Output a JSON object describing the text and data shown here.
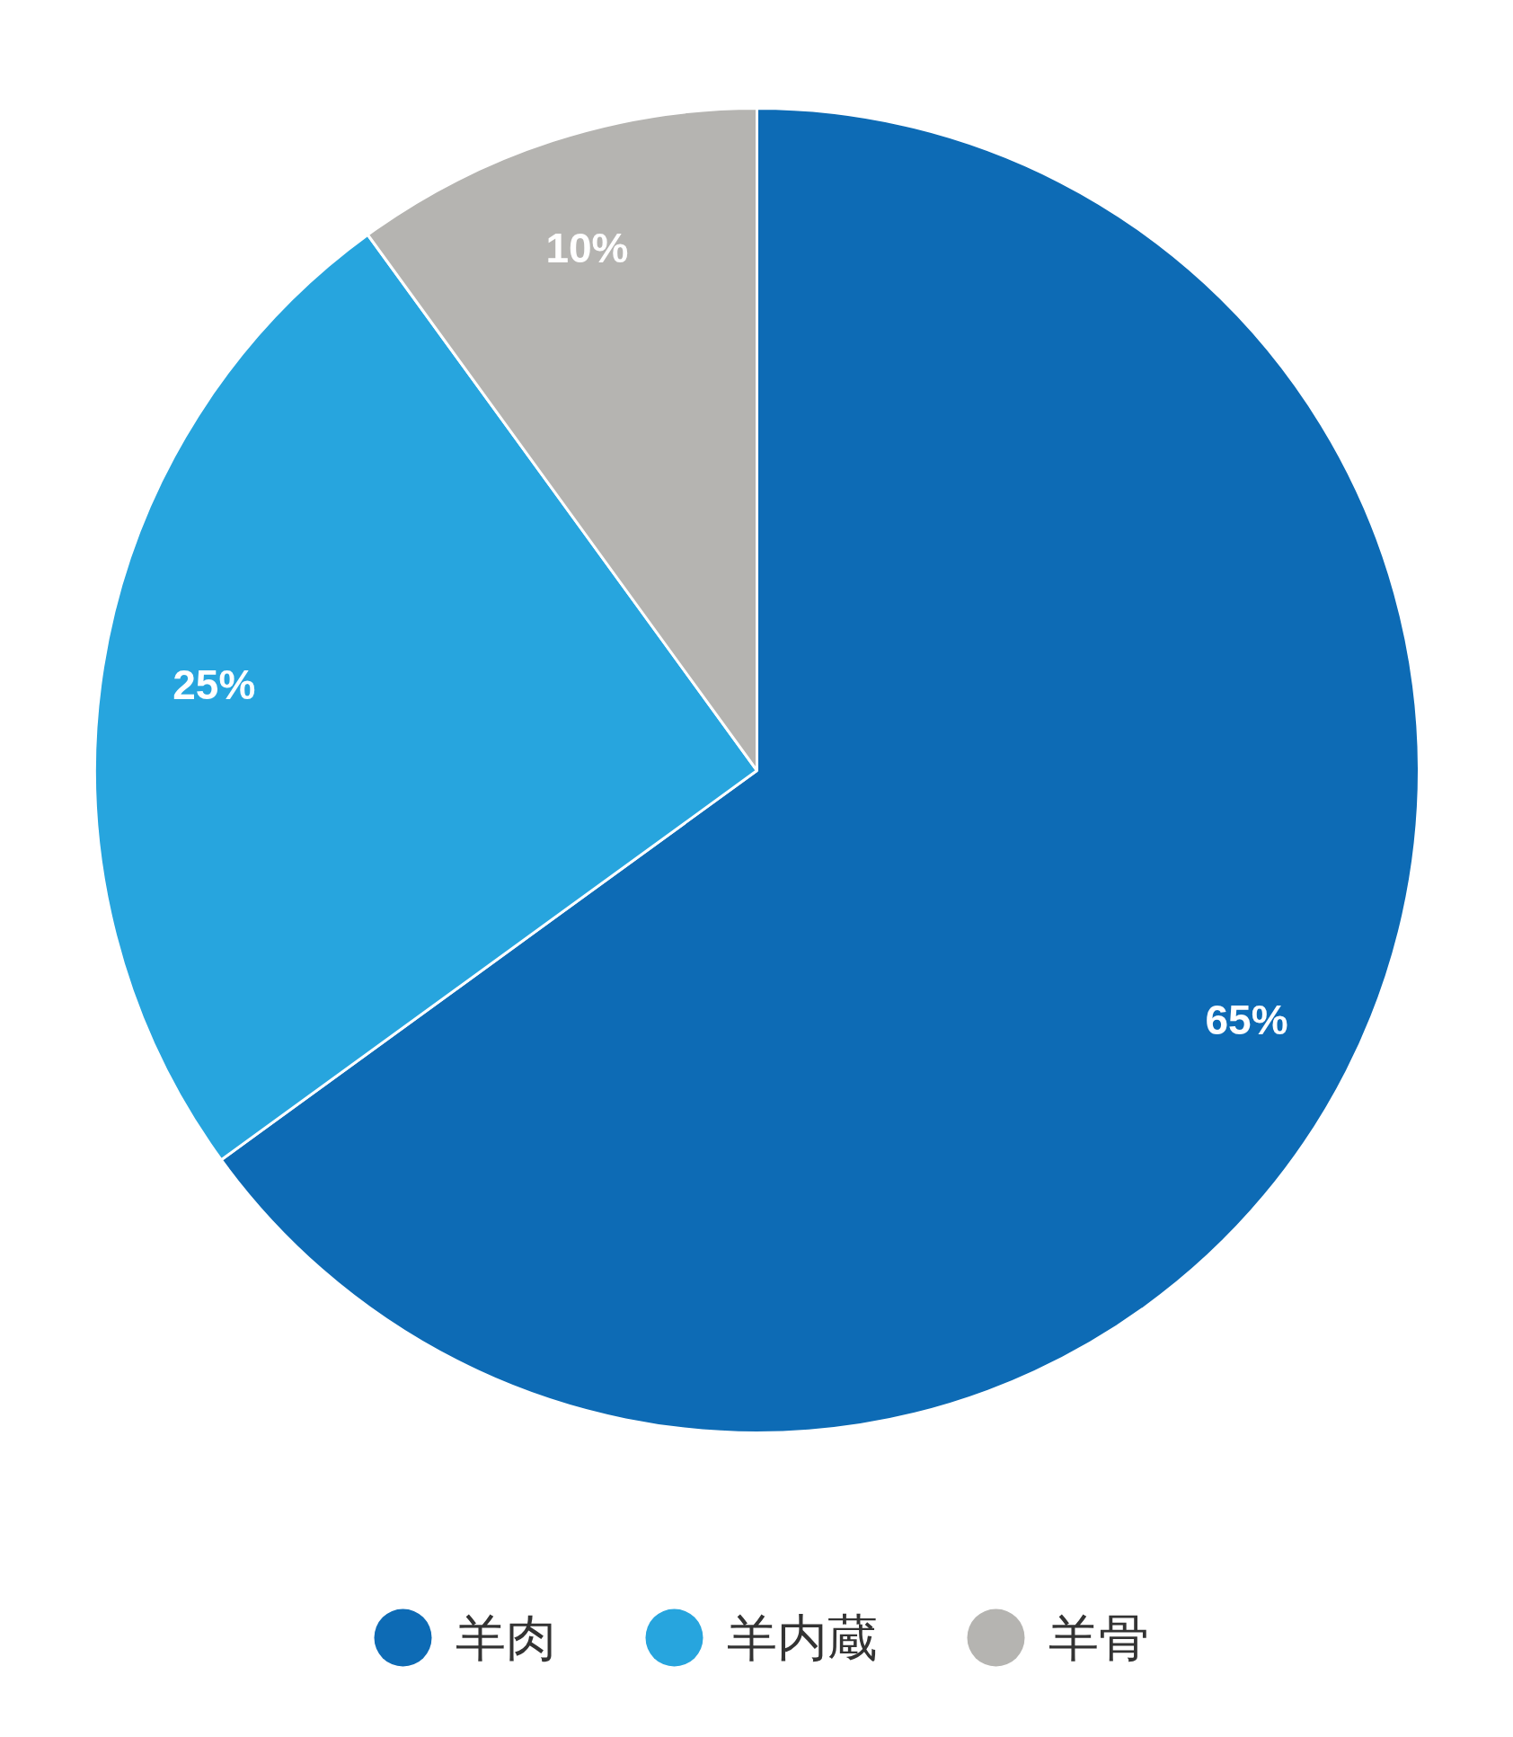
{
  "chart_data": {
    "type": "pie",
    "categories": [
      "羊肉",
      "羊内蔵",
      "羊骨"
    ],
    "values": [
      65,
      25,
      10
    ],
    "colors": [
      "#0d6bb5",
      "#27a5de",
      "#b5b4b1"
    ],
    "value_labels": [
      "65%",
      "25%",
      "10%"
    ],
    "legend": "bottom"
  }
}
